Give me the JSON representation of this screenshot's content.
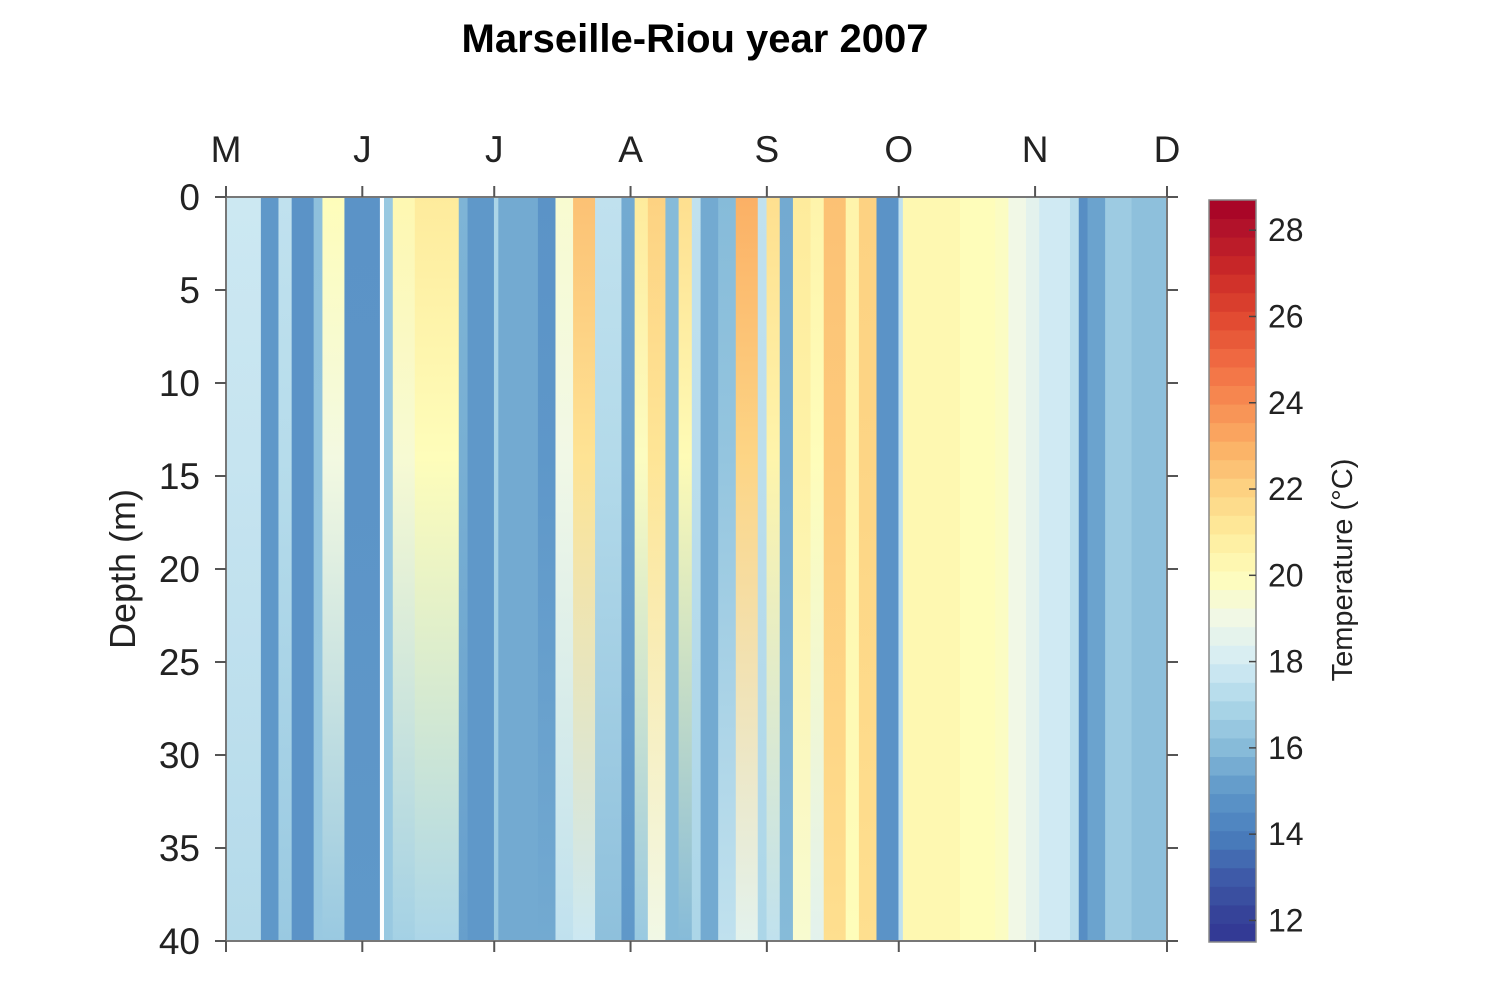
{
  "chart_data": {
    "type": "heatmap",
    "title": "Marseille-Riou year 2007",
    "xlabel": "",
    "ylabel": "Depth (m)",
    "colorbar_label": "Temperature (°C)",
    "x_tick_labels": [
      "M",
      "J",
      "J",
      "A",
      "S",
      "O",
      "N",
      "D"
    ],
    "x_ticks": [
      "2007-05-01",
      "2007-06-01",
      "2007-07-01",
      "2007-08-01",
      "2007-09-01",
      "2007-10-01",
      "2007-11-01",
      "2007-12-01"
    ],
    "xlim": [
      "2007-05-01",
      "2007-12-01"
    ],
    "x_axis_position": "top",
    "ylim": [
      0,
      40
    ],
    "y_reversed": true,
    "y_ticks": [
      0,
      5,
      10,
      15,
      20,
      25,
      30,
      35,
      40
    ],
    "clim": [
      11.5,
      28.7
    ],
    "colorbar_ticks": [
      12,
      14,
      16,
      18,
      20,
      22,
      24,
      26,
      28
    ],
    "colorbar_position": "right",
    "colormap": "red-yellow-blue (reversed)",
    "colormap_stops": [
      [
        11.5,
        "#313695"
      ],
      [
        12,
        "#353f96"
      ],
      [
        13,
        "#3e5aa8"
      ],
      [
        14,
        "#4a7fbd"
      ],
      [
        15,
        "#5f98c9"
      ],
      [
        16,
        "#86bbd9"
      ],
      [
        17,
        "#acd6e8"
      ],
      [
        18,
        "#d4ecf4"
      ],
      [
        19,
        "#f1f8e6"
      ],
      [
        20,
        "#fefdba"
      ],
      [
        21,
        "#feeb9c"
      ],
      [
        22,
        "#fdd282"
      ],
      [
        23,
        "#fbb065"
      ],
      [
        24,
        "#f78c52"
      ],
      [
        25,
        "#f06a42"
      ],
      [
        26,
        "#e04830"
      ],
      [
        27,
        "#cc2b28"
      ],
      [
        28,
        "#b3132a"
      ],
      [
        28.7,
        "#a50026"
      ]
    ],
    "grid": false,
    "profiles": [
      {
        "start": "2007-05-01",
        "surface": 17.8,
        "bottom": 17.2
      },
      {
        "start": "2007-05-09",
        "surface": 15.0,
        "bottom": 15.0
      },
      {
        "start": "2007-05-13",
        "surface": 17.5,
        "bottom": 16.5
      },
      {
        "start": "2007-05-16",
        "surface": 14.8,
        "bottom": 14.8
      },
      {
        "start": "2007-05-21",
        "surface": 16.2,
        "bottom": 16.5
      },
      {
        "start": "2007-05-23",
        "surface": 20.0,
        "bottom": 16.5
      },
      {
        "start": "2007-05-28",
        "surface": 14.8,
        "bottom": 15.0
      },
      {
        "start": "2007-06-05",
        "surface": null,
        "bottom": null
      },
      {
        "start": "2007-06-06",
        "surface": 16.5,
        "bottom": 16.5
      },
      {
        "start": "2007-06-08",
        "surface": 20.3,
        "bottom": 16.8
      },
      {
        "start": "2007-06-13",
        "surface": 21.0,
        "bottom": 17.0
      },
      {
        "start": "2007-06-23",
        "surface": 15.8,
        "bottom": 15.2
      },
      {
        "start": "2007-06-25",
        "surface": 15.0,
        "bottom": 15.0
      },
      {
        "start": "2007-07-01",
        "surface": 17.0,
        "bottom": 16.5
      },
      {
        "start": "2007-07-02",
        "surface": 15.5,
        "bottom": 15.5
      },
      {
        "start": "2007-07-11",
        "surface": 14.8,
        "bottom": 15.5
      },
      {
        "start": "2007-07-15",
        "surface": 19.5,
        "bottom": 17.5
      },
      {
        "start": "2007-07-19",
        "surface": 22.5,
        "bottom": 17.8
      },
      {
        "start": "2007-07-24",
        "surface": 17.5,
        "bottom": 16.2
      },
      {
        "start": "2007-07-30",
        "surface": 15.5,
        "bottom": 15.0
      },
      {
        "start": "2007-08-02",
        "surface": 21.0,
        "bottom": 16.5
      },
      {
        "start": "2007-08-05",
        "surface": 22.0,
        "bottom": 19.0
      },
      {
        "start": "2007-08-09",
        "surface": 16.0,
        "bottom": 16.0
      },
      {
        "start": "2007-08-12",
        "surface": 21.5,
        "bottom": 16.0
      },
      {
        "start": "2007-08-15",
        "surface": 17.5,
        "bottom": 17.0
      },
      {
        "start": "2007-08-17",
        "surface": 15.5,
        "bottom": 15.5
      },
      {
        "start": "2007-08-21",
        "surface": 16.0,
        "bottom": 17.5
      },
      {
        "start": "2007-08-25",
        "surface": 23.0,
        "bottom": 18.5
      },
      {
        "start": "2007-08-30",
        "surface": 17.5,
        "bottom": 17.0
      },
      {
        "start": "2007-09-01",
        "surface": 21.5,
        "bottom": 17.5
      },
      {
        "start": "2007-09-04",
        "surface": 15.5,
        "bottom": 16.0
      },
      {
        "start": "2007-09-07",
        "surface": 21.0,
        "bottom": 19.5
      },
      {
        "start": "2007-09-11",
        "surface": 20.5,
        "bottom": 18.5
      },
      {
        "start": "2007-09-14",
        "surface": 22.5,
        "bottom": 21.5
      },
      {
        "start": "2007-09-19",
        "surface": 20.5,
        "bottom": 20.0
      },
      {
        "start": "2007-09-22",
        "surface": 22.0,
        "bottom": 21.5
      },
      {
        "start": "2007-09-26",
        "surface": 14.8,
        "bottom": 14.8
      },
      {
        "start": "2007-10-01",
        "surface": 17.5,
        "bottom": 17.5
      },
      {
        "start": "2007-10-02",
        "surface": 20.3,
        "bottom": 20.3
      },
      {
        "start": "2007-10-15",
        "surface": 20.0,
        "bottom": 20.0
      },
      {
        "start": "2007-10-23",
        "surface": 19.8,
        "bottom": 19.8
      },
      {
        "start": "2007-10-26",
        "surface": 19.0,
        "bottom": 19.0
      },
      {
        "start": "2007-10-30",
        "surface": 18.5,
        "bottom": 18.5
      },
      {
        "start": "2007-11-02",
        "surface": 17.9,
        "bottom": 17.9
      },
      {
        "start": "2007-11-09",
        "surface": 17.3,
        "bottom": 17.3
      },
      {
        "start": "2007-11-11",
        "surface": 14.6,
        "bottom": 14.6
      },
      {
        "start": "2007-11-13",
        "surface": 15.3,
        "bottom": 15.3
      },
      {
        "start": "2007-11-17",
        "surface": 16.6,
        "bottom": 16.6
      },
      {
        "start": "2007-11-23",
        "surface": 16.2,
        "bottom": 16.2
      }
    ]
  }
}
